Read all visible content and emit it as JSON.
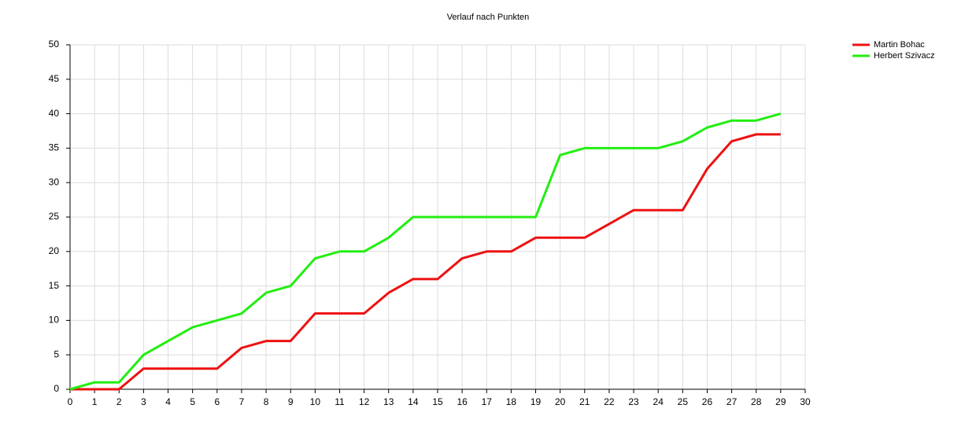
{
  "chart_data": {
    "type": "line",
    "title": "Verlauf nach Punkten",
    "x": [
      0,
      1,
      2,
      3,
      4,
      5,
      6,
      7,
      8,
      9,
      10,
      11,
      12,
      13,
      14,
      15,
      16,
      17,
      18,
      19,
      20,
      21,
      22,
      23,
      24,
      25,
      26,
      27,
      28,
      29
    ],
    "series": [
      {
        "name": "Martin Bohac",
        "color": "#ee1111",
        "values": [
          0,
          0,
          0,
          3,
          3,
          3,
          3,
          6,
          7,
          7,
          11,
          11,
          11,
          14,
          16,
          16,
          19,
          20,
          20,
          22,
          22,
          22,
          24,
          26,
          26,
          26,
          32,
          36,
          37,
          37
        ]
      },
      {
        "name": "Herbert Szivacz",
        "color": "#22ee11",
        "values": [
          0,
          1,
          1,
          5,
          7,
          9,
          10,
          11,
          14,
          15,
          19,
          20,
          20,
          22,
          25,
          25,
          25,
          25,
          25,
          25,
          34,
          35,
          35,
          35,
          35,
          36,
          38,
          39,
          39,
          40
        ]
      }
    ],
    "xlim": [
      0,
      30
    ],
    "xticks": [
      0,
      1,
      2,
      3,
      4,
      5,
      6,
      7,
      8,
      9,
      10,
      11,
      12,
      13,
      14,
      15,
      16,
      17,
      18,
      19,
      20,
      21,
      22,
      23,
      24,
      25,
      26,
      27,
      28,
      29,
      30
    ],
    "ylim": [
      0,
      50
    ],
    "yticks": [
      0,
      5,
      10,
      15,
      20,
      25,
      30,
      35,
      40,
      45,
      50
    ],
    "grid": true,
    "legend": "top-right"
  }
}
